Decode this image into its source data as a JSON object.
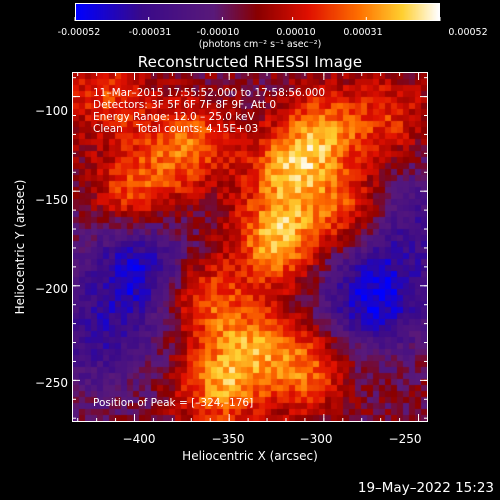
{
  "colorbar": {
    "ticks": [
      "-0.00052",
      "-0.00031",
      "-0.00010",
      "0.00010",
      "0.00031",
      "0.00052"
    ],
    "tick_values": [
      -0.00052,
      -0.00031,
      -0.0001,
      0.0001,
      0.00031,
      0.00052
    ],
    "range": [
      -0.00052,
      0.00052
    ],
    "unit_label": "(photons cm⁻² s⁻¹ asec⁻²)",
    "colors": [
      "#0000ff",
      "#3a0a8a",
      "#5a1a7a",
      "#8a0000",
      "#e01000",
      "#ff7000",
      "#ffd030",
      "#ffffff"
    ]
  },
  "chart_data": {
    "type": "heatmap",
    "title": "Reconstructed RHESSI Image",
    "xlabel": "Heliocentric X (arcsec)",
    "ylabel": "Heliocentric Y (arcsec)",
    "xlim": [
      -433,
      -245
    ],
    "ylim": [
      -272,
      -87
    ],
    "xticks": [
      -400,
      -350,
      -300,
      -250
    ],
    "yticks": [
      -100,
      -150,
      -200,
      -250
    ],
    "xtick_labels": [
      "−400",
      "−350",
      "−300",
      "−250"
    ],
    "ytick_labels": [
      "−100",
      "−150",
      "−200",
      "−250"
    ],
    "annotations": [
      "11–Mar–2015 17:55:52.000 to 17:58:56.000",
      "Detectors: 3F 5F 6F 7F 8F 9F, Att 0",
      "Energy Range: 12.0 – 25.0 keV",
      "Clean    Total counts: 4.15E+03"
    ],
    "peak_label": "Position of Peak = [–324,–176]",
    "peak_position": [
      -324,
      -176
    ],
    "bright_regions": [
      {
        "x": -324,
        "y": -176,
        "level": 1.0
      },
      {
        "x": -318,
        "y": -140,
        "level": 0.85
      },
      {
        "x": -372,
        "y": -125,
        "level": 0.8
      },
      {
        "x": -400,
        "y": -150,
        "level": 0.7
      },
      {
        "x": -300,
        "y": -118,
        "level": 0.75
      },
      {
        "x": -355,
        "y": -255,
        "level": 0.8
      },
      {
        "x": -310,
        "y": -245,
        "level": 0.75
      },
      {
        "x": -365,
        "y": -205,
        "level": 0.7
      },
      {
        "x": -285,
        "y": -160,
        "level": 0.65
      },
      {
        "x": -415,
        "y": -100,
        "level": 0.6
      },
      {
        "x": -340,
        "y": -230,
        "level": 0.7
      },
      {
        "x": -265,
        "y": -110,
        "level": 0.5
      }
    ],
    "dark_regions": [
      {
        "x": -398,
        "y": -192,
        "level": -0.85
      },
      {
        "x": -273,
        "y": -206,
        "level": -0.9
      },
      {
        "x": -255,
        "y": -165,
        "level": -0.5
      },
      {
        "x": -420,
        "y": -230,
        "level": -0.5
      }
    ]
  },
  "timestamp": "19–May–2022 15:23"
}
